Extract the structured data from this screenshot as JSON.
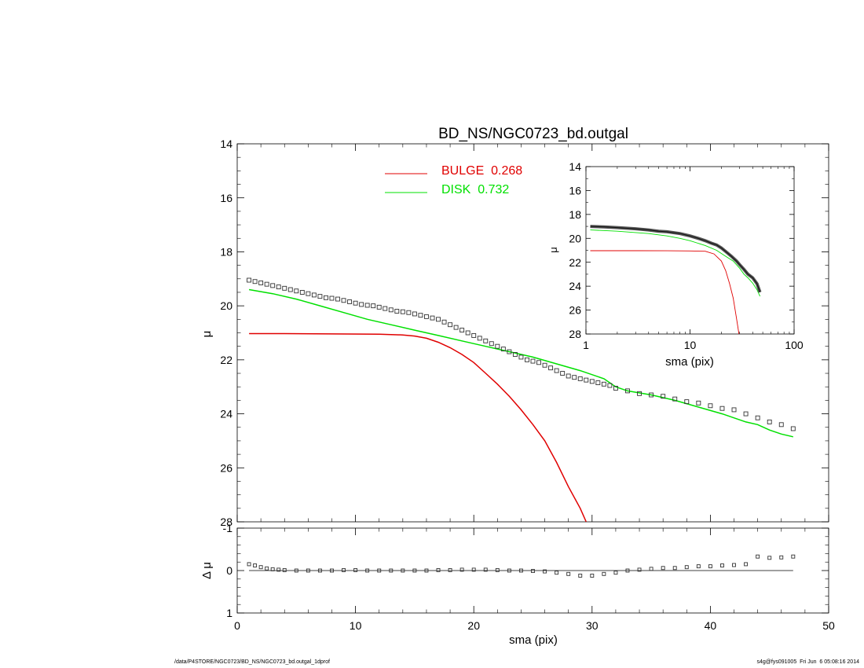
{
  "footer": {
    "left": "/data/P4STORE/NGC0723/BD_NS/NGC0723_bd.outgal_1dprof",
    "right": "s4g@fys091005  Fri Jun  6 05:08:16 2014"
  },
  "colors": {
    "bulge": "#e00000",
    "disk": "#00e000",
    "data": "#000000"
  },
  "chart_data": [
    {
      "id": "main",
      "type": "line",
      "title": "BD_NS/NGC0723_bd.outgal",
      "xlabel": "",
      "ylabel": "μ",
      "xlim": [
        0,
        50
      ],
      "ylim": [
        28,
        14
      ],
      "x_ticks": [
        0,
        10,
        20,
        30,
        40,
        50
      ],
      "y_ticks": [
        14,
        16,
        18,
        20,
        22,
        24,
        26,
        28
      ],
      "y_tick_labels": [
        "14",
        "16",
        "18",
        "20",
        "22",
        "24",
        "26",
        "28"
      ],
      "legend": {
        "placement": "top-center",
        "entries": [
          {
            "label": "BULGE  0.268",
            "color": "#e00000"
          },
          {
            "label": "DISK  0.732",
            "color": "#00e000"
          }
        ]
      },
      "observed": {
        "x": [
          1.0,
          1.5,
          2.0,
          2.5,
          3.0,
          3.5,
          4.0,
          4.5,
          5.0,
          5.5,
          6.0,
          6.5,
          7.0,
          7.5,
          8.0,
          8.5,
          9.0,
          9.5,
          10,
          10.5,
          11,
          11.5,
          12,
          12.5,
          13,
          13.5,
          14,
          14.5,
          15,
          15.5,
          16,
          16.5,
          17,
          17.5,
          18,
          18.5,
          19,
          19.5,
          20,
          20.5,
          21,
          21.5,
          22,
          22.5,
          23,
          23.5,
          24,
          24.5,
          25,
          25.5,
          26,
          26.5,
          27,
          27.5,
          28,
          28.5,
          29,
          29.5,
          30,
          30.5,
          31,
          31.5,
          32,
          33,
          34,
          35,
          36,
          37,
          38,
          39,
          40,
          41,
          42,
          43,
          44,
          45,
          46,
          47
        ],
        "y": [
          19.05,
          19.1,
          19.15,
          19.2,
          19.25,
          19.3,
          19.35,
          19.4,
          19.45,
          19.5,
          19.55,
          19.6,
          19.65,
          19.7,
          19.72,
          19.75,
          19.8,
          19.85,
          19.9,
          19.95,
          19.98,
          20.0,
          20.05,
          20.1,
          20.15,
          20.2,
          20.22,
          20.25,
          20.3,
          20.35,
          20.4,
          20.45,
          20.5,
          20.6,
          20.7,
          20.8,
          20.9,
          21.0,
          21.1,
          21.2,
          21.3,
          21.4,
          21.5,
          21.6,
          21.7,
          21.8,
          21.9,
          22.0,
          22.05,
          22.1,
          22.2,
          22.3,
          22.4,
          22.5,
          22.6,
          22.65,
          22.7,
          22.75,
          22.8,
          22.85,
          22.9,
          22.95,
          23.05,
          23.15,
          23.25,
          23.3,
          23.35,
          23.45,
          23.55,
          23.6,
          23.7,
          23.8,
          23.85,
          24.0,
          24.15,
          24.3,
          24.4,
          24.55
        ]
      },
      "series": [
        {
          "name": "BULGE",
          "color": "#e00000",
          "x": [
            1,
            4,
            8,
            12,
            14,
            15,
            16,
            17,
            18,
            19,
            20,
            21,
            22,
            23,
            24,
            25,
            26,
            27,
            28,
            29,
            29.5
          ],
          "y": [
            21.03,
            21.03,
            21.04,
            21.05,
            21.08,
            21.12,
            21.2,
            21.35,
            21.55,
            21.8,
            22.1,
            22.5,
            22.9,
            23.35,
            23.85,
            24.4,
            25.0,
            25.8,
            26.7,
            27.5,
            28.0
          ]
        },
        {
          "name": "DISK",
          "color": "#00e000",
          "x": [
            1,
            3,
            5,
            7,
            9,
            11,
            13,
            15,
            17,
            19,
            21,
            23,
            25,
            27,
            29,
            31,
            32,
            33,
            35,
            37,
            39,
            41,
            43,
            44,
            45,
            46,
            47
          ],
          "y": [
            19.4,
            19.55,
            19.75,
            20.0,
            20.25,
            20.5,
            20.7,
            20.9,
            21.1,
            21.3,
            21.5,
            21.7,
            21.9,
            22.15,
            22.4,
            22.7,
            23.0,
            23.15,
            23.3,
            23.5,
            23.75,
            24.0,
            24.3,
            24.4,
            24.6,
            24.75,
            24.85
          ]
        }
      ]
    },
    {
      "id": "residual",
      "type": "scatter",
      "xlabel": "sma (pix)",
      "ylabel": "Δ μ",
      "xlim": [
        0,
        50
      ],
      "ylim": [
        1,
        -1
      ],
      "x_ticks": [
        0,
        10,
        20,
        30,
        40,
        50
      ],
      "y_ticks": [
        1,
        0,
        -1
      ],
      "y_tick_labels": [
        "1",
        "0",
        "-1"
      ],
      "zero_line": true,
      "x": [
        1.0,
        1.5,
        2.0,
        2.5,
        3.0,
        3.5,
        4.0,
        5,
        6,
        7,
        8,
        9,
        10,
        11,
        12,
        13,
        14,
        15,
        16,
        17,
        18,
        19,
        20,
        21,
        22,
        23,
        24,
        25,
        26,
        27,
        28,
        29,
        30,
        31,
        32,
        33,
        34,
        35,
        36,
        37,
        38,
        39,
        40,
        41,
        42,
        43,
        44,
        45,
        46,
        47
      ],
      "y": [
        -0.15,
        -0.12,
        -0.08,
        -0.05,
        -0.03,
        -0.02,
        -0.01,
        0.0,
        0.0,
        0.0,
        0.0,
        -0.01,
        -0.01,
        0.0,
        0.0,
        0.0,
        0.0,
        0.0,
        0.0,
        -0.01,
        -0.01,
        -0.02,
        -0.02,
        -0.02,
        -0.01,
        0.0,
        0.0,
        0.01,
        0.02,
        0.05,
        0.08,
        0.12,
        0.12,
        0.08,
        0.05,
        0.0,
        -0.02,
        -0.04,
        -0.06,
        -0.06,
        -0.08,
        -0.1,
        -0.1,
        -0.12,
        -0.13,
        -0.15,
        -0.33,
        -0.3,
        -0.31,
        -0.33
      ]
    },
    {
      "id": "inset",
      "type": "line",
      "xlabel": "sma (pix)",
      "ylabel": "μ",
      "xscale": "log",
      "xlim": [
        1,
        100
      ],
      "ylim": [
        28,
        14
      ],
      "x_ticks": [
        1,
        10,
        100
      ],
      "y_ticks": [
        14,
        16,
        18,
        20,
        22,
        24,
        26,
        28
      ],
      "y_tick_labels": [
        "14",
        "16",
        "18",
        "20",
        "22",
        "24",
        "26",
        "28"
      ],
      "observed": {
        "x": [
          1.1,
          1.5,
          2,
          3,
          4,
          5,
          6,
          8,
          10,
          12,
          14,
          16,
          18,
          20,
          22,
          25,
          28,
          30,
          33,
          36,
          40,
          44,
          47
        ],
        "y": [
          19.0,
          19.05,
          19.1,
          19.2,
          19.3,
          19.4,
          19.45,
          19.6,
          19.8,
          20.0,
          20.2,
          20.4,
          20.55,
          20.8,
          21.1,
          21.5,
          21.9,
          22.2,
          22.6,
          23.0,
          23.3,
          23.8,
          24.5
        ]
      },
      "series": [
        {
          "name": "BULGE",
          "color": "#e00000",
          "x": [
            1.1,
            3,
            6,
            10,
            14,
            17,
            20,
            22,
            24,
            26,
            28,
            29.5
          ],
          "y": [
            21.03,
            21.03,
            21.04,
            21.05,
            21.08,
            21.3,
            21.9,
            22.7,
            23.8,
            25.0,
            26.7,
            28.0
          ]
        },
        {
          "name": "DISK",
          "color": "#00e000",
          "x": [
            1.1,
            2,
            4,
            6,
            8,
            10,
            14,
            18,
            22,
            26,
            30,
            33,
            36,
            40,
            44,
            47
          ],
          "y": [
            19.3,
            19.4,
            19.6,
            19.8,
            20.0,
            20.2,
            20.6,
            21.0,
            21.5,
            21.9,
            22.5,
            23.0,
            23.3,
            23.75,
            24.3,
            24.85
          ]
        }
      ]
    }
  ]
}
